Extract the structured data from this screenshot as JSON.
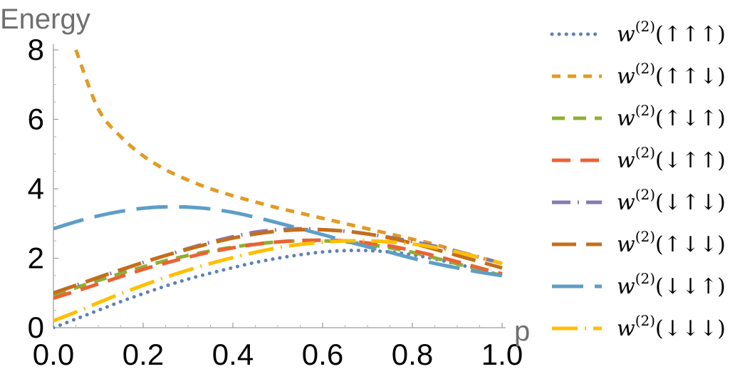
{
  "chart_data": {
    "type": "line",
    "title": "",
    "xlabel": "p",
    "ylabel": "Energy",
    "xlim": [
      0.0,
      1.0
    ],
    "ylim": [
      0,
      8
    ],
    "x_ticks": [
      "0.0",
      "0.2",
      "0.4",
      "0.6",
      "0.8",
      "1.0"
    ],
    "y_ticks": [
      "0",
      "2",
      "4",
      "6",
      "8"
    ],
    "legend_position": "right",
    "x": [
      0.0,
      0.05,
      0.1,
      0.15,
      0.2,
      0.25,
      0.3,
      0.35,
      0.4,
      0.45,
      0.5,
      0.55,
      0.6,
      0.65,
      0.7,
      0.75,
      0.8,
      0.85,
      0.9,
      0.95,
      1.0
    ],
    "series": [
      {
        "name": "w^(2)(↑↑↑)",
        "legend_base": "w",
        "legend_sup": "(2)",
        "legend_arg": "(↑↑↑)",
        "color": "#5e81b5",
        "dash": "dot",
        "values": [
          0.0,
          0.25,
          0.5,
          0.75,
          0.98,
          1.2,
          1.4,
          1.57,
          1.73,
          1.88,
          2.0,
          2.1,
          2.18,
          2.22,
          2.22,
          2.18,
          2.1,
          1.98,
          1.83,
          1.67,
          1.5
        ]
      },
      {
        "name": "w^(2)(↑↑↓)",
        "legend_base": "w",
        "legend_sup": "(2)",
        "legend_arg": "(↑↑↓)",
        "color": "#e19c24",
        "dash": "short",
        "values": [
          null,
          8.0,
          6.3,
          5.5,
          4.95,
          4.55,
          4.25,
          4.0,
          3.8,
          3.62,
          3.45,
          3.3,
          3.15,
          3.0,
          2.85,
          2.7,
          2.55,
          2.4,
          2.2,
          2.02,
          1.85
        ]
      },
      {
        "name": "w^(2)(↑↓↑)",
        "legend_base": "w",
        "legend_sup": "(2)",
        "legend_arg": "(↑↓↑)",
        "color": "#8fb032",
        "dash": "medium",
        "values": [
          0.95,
          1.15,
          1.36,
          1.56,
          1.75,
          1.93,
          2.08,
          2.21,
          2.32,
          2.41,
          2.47,
          2.5,
          2.5,
          2.47,
          2.4,
          2.3,
          2.17,
          2.01,
          1.84,
          1.67,
          1.5
        ]
      },
      {
        "name": "w^(2)(↓↑↑)",
        "legend_base": "w",
        "legend_sup": "(2)",
        "legend_arg": "(↓↑↑)",
        "color": "#eb6235",
        "dash": "long",
        "values": [
          0.85,
          1.05,
          1.26,
          1.47,
          1.68,
          1.86,
          2.03,
          2.18,
          2.3,
          2.4,
          2.47,
          2.51,
          2.52,
          2.5,
          2.44,
          2.35,
          2.22,
          2.07,
          1.9,
          1.72,
          1.55
        ]
      },
      {
        "name": "w^(2)(↓↑↓)",
        "legend_base": "w",
        "legend_sup": "(2)",
        "legend_arg": "(↓↑↓)",
        "color": "#8778b3",
        "dash": "dashdot",
        "values": [
          1.0,
          1.22,
          1.44,
          1.66,
          1.88,
          2.08,
          2.28,
          2.46,
          2.62,
          2.75,
          2.82,
          2.85,
          2.82,
          2.78,
          2.7,
          2.6,
          2.48,
          2.35,
          2.2,
          2.03,
          1.85
        ]
      },
      {
        "name": "w^(2)(↑↓↓)",
        "legend_base": "w",
        "legend_sup": "(2)",
        "legend_arg": "(↑↓↓)",
        "color": "#c56e1a",
        "dash": "longer",
        "values": [
          1.0,
          1.22,
          1.45,
          1.67,
          1.88,
          2.08,
          2.26,
          2.43,
          2.58,
          2.7,
          2.78,
          2.82,
          2.82,
          2.78,
          2.7,
          2.58,
          2.43,
          2.26,
          2.08,
          1.9,
          1.72
        ]
      },
      {
        "name": "w^(2)(↓↓↑)",
        "legend_base": "w",
        "legend_sup": "(2)",
        "legend_arg": "(↓↓↑)",
        "color": "#5d9ec7",
        "dash": "longest",
        "values": [
          2.85,
          3.05,
          3.22,
          3.35,
          3.44,
          3.48,
          3.47,
          3.42,
          3.32,
          3.18,
          3.02,
          2.85,
          2.68,
          2.5,
          2.33,
          2.17,
          2.0,
          1.85,
          1.72,
          1.6,
          1.5
        ]
      },
      {
        "name": "w^(2)(↓↓↓)",
        "legend_base": "w",
        "legend_sup": "(2)",
        "legend_arg": "(↓↓↓)",
        "color": "#ffbf00",
        "dash": "longdot",
        "values": [
          0.2,
          0.45,
          0.72,
          0.98,
          1.22,
          1.45,
          1.66,
          1.85,
          2.02,
          2.17,
          2.3,
          2.4,
          2.46,
          2.5,
          2.5,
          2.47,
          2.41,
          2.31,
          2.18,
          2.02,
          1.85
        ]
      }
    ]
  }
}
